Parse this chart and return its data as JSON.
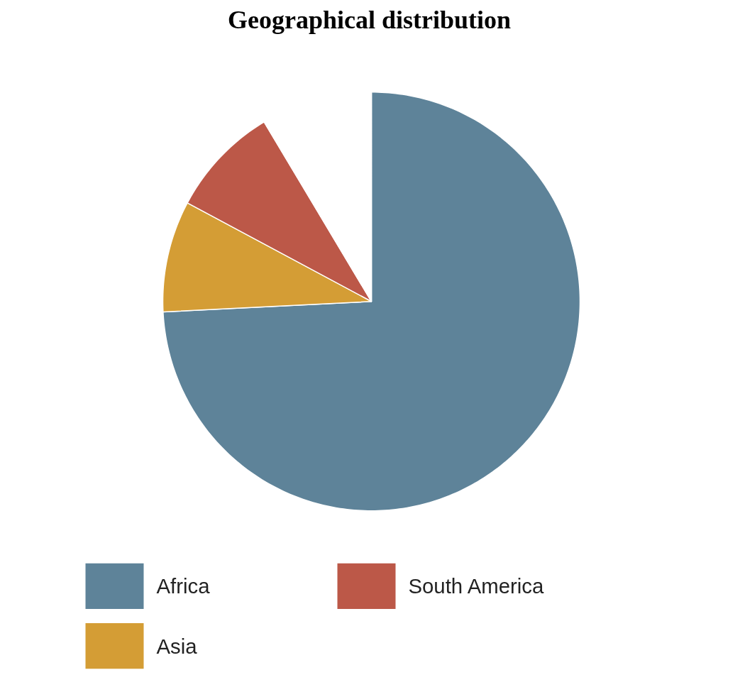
{
  "chart_data": {
    "type": "pie",
    "title": "Geographical distribution",
    "categories": [
      "Africa",
      "Asia",
      "South America",
      null
    ],
    "values": [
      74.2,
      8.6,
      8.6,
      8.6
    ],
    "colors": [
      "#5e8399",
      "#d49d35",
      "#bc5848",
      "#ffffff"
    ],
    "legend": "bottom"
  }
}
